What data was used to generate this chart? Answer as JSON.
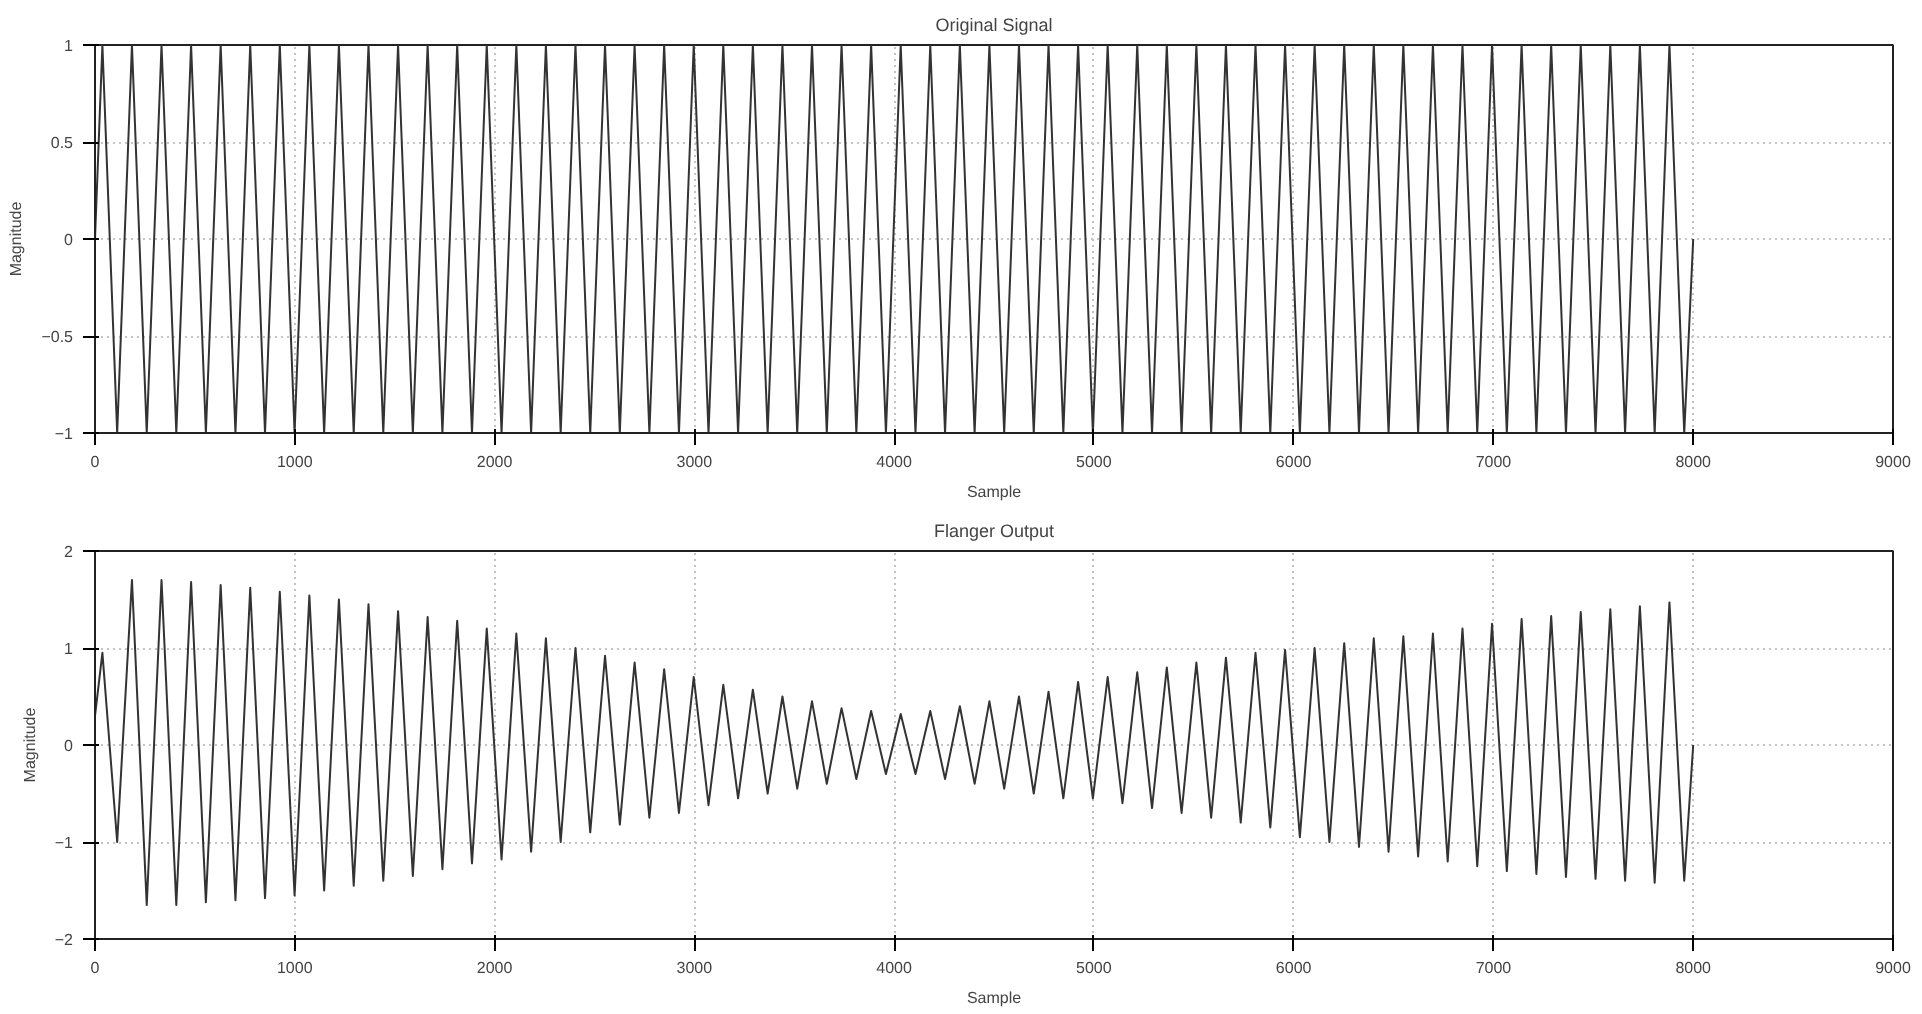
{
  "chart_data": [
    {
      "type": "line",
      "title": "Original Signal",
      "xlabel": "Sample",
      "ylabel": "Magnitude",
      "grid": true,
      "xlim": [
        0,
        9000
      ],
      "xticks": [
        0,
        1000,
        2000,
        3000,
        4000,
        5000,
        6000,
        7000,
        8000,
        9000
      ],
      "ylim": [
        -1,
        1
      ],
      "yticks": [
        -1,
        -0.5,
        0,
        0.5,
        1
      ],
      "x": [
        0,
        37,
        111,
        185,
        259,
        333,
        407,
        481,
        555,
        629,
        703,
        777,
        851,
        925,
        999,
        1073,
        1147,
        1221,
        1295,
        1369,
        1443,
        1517,
        1591,
        1665,
        1739,
        1813,
        1887,
        1961,
        2035,
        2109,
        2183,
        2257,
        2331,
        2405,
        2479,
        2553,
        2627,
        2701,
        2775,
        2849,
        2923,
        2997,
        3071,
        3145,
        3219,
        3293,
        3367,
        3441,
        3515,
        3589,
        3663,
        3737,
        3811,
        3885,
        3959,
        4033,
        4107,
        4181,
        4255,
        4329,
        4403,
        4477,
        4551,
        4625,
        4699,
        4773,
        4847,
        4921,
        4995,
        5069,
        5143,
        5217,
        5291,
        5365,
        5439,
        5513,
        5587,
        5661,
        5735,
        5809,
        5883,
        5957,
        6031,
        6105,
        6179,
        6253,
        6327,
        6401,
        6475,
        6549,
        6623,
        6697,
        6771,
        6845,
        6919,
        6993,
        7067,
        7141,
        7215,
        7289,
        7363,
        7437,
        7511,
        7585,
        7659,
        7733,
        7807,
        7881,
        7955,
        8000
      ],
      "series": [
        {
          "color": "#333333",
          "values": [
            0,
            1,
            -1,
            1,
            -1,
            1,
            -1,
            1,
            -1,
            1,
            -1,
            1,
            -1,
            1,
            -1,
            1,
            -1,
            1,
            -1,
            1,
            -1,
            1,
            -1,
            1,
            -1,
            1,
            -1,
            1,
            -1,
            1,
            -1,
            1,
            -1,
            1,
            -1,
            1,
            -1,
            1,
            -1,
            1,
            -1,
            1,
            -1,
            1,
            -1,
            1,
            -1,
            1,
            -1,
            1,
            -1,
            1,
            -1,
            1,
            -1,
            1,
            -1,
            1,
            -1,
            1,
            -1,
            1,
            -1,
            1,
            -1,
            1,
            -1,
            1,
            -1,
            1,
            -1,
            1,
            -1,
            1,
            -1,
            1,
            -1,
            1,
            -1,
            1,
            -1,
            1,
            -1,
            1,
            -1,
            1,
            -1,
            1,
            -1,
            1,
            -1,
            1,
            -1,
            1,
            -1,
            1,
            -1,
            1,
            -1,
            1,
            -1,
            1,
            -1,
            1,
            -1,
            1,
            -1,
            1,
            -1,
            0
          ]
        }
      ]
    },
    {
      "type": "line",
      "title": "Flanger Output",
      "xlabel": "Sample",
      "ylabel": "Magnitude",
      "grid": true,
      "xlim": [
        0,
        9000
      ],
      "xticks": [
        0,
        1000,
        2000,
        3000,
        4000,
        5000,
        6000,
        7000,
        8000,
        9000
      ],
      "ylim": [
        -2,
        2
      ],
      "yticks": [
        -2,
        -1,
        0,
        1,
        2
      ],
      "x": [
        0,
        37,
        111,
        185,
        259,
        333,
        407,
        481,
        555,
        629,
        703,
        777,
        851,
        925,
        999,
        1073,
        1147,
        1221,
        1295,
        1369,
        1443,
        1517,
        1591,
        1665,
        1739,
        1813,
        1887,
        1961,
        2035,
        2109,
        2183,
        2257,
        2331,
        2405,
        2479,
        2553,
        2627,
        2701,
        2775,
        2849,
        2923,
        2997,
        3071,
        3145,
        3219,
        3293,
        3367,
        3441,
        3515,
        3589,
        3663,
        3737,
        3811,
        3885,
        3959,
        4033,
        4107,
        4181,
        4255,
        4329,
        4403,
        4477,
        4551,
        4625,
        4699,
        4773,
        4847,
        4921,
        4995,
        5069,
        5143,
        5217,
        5291,
        5365,
        5439,
        5513,
        5587,
        5661,
        5735,
        5809,
        5883,
        5957,
        6031,
        6105,
        6179,
        6253,
        6327,
        6401,
        6475,
        6549,
        6623,
        6697,
        6771,
        6845,
        6919,
        6993,
        7067,
        7141,
        7215,
        7289,
        7363,
        7437,
        7511,
        7585,
        7659,
        7733,
        7807,
        7881,
        7955,
        8000
      ],
      "series": [
        {
          "color": "#333333",
          "values": [
            0.3,
            0.95,
            -1.0,
            1.7,
            -1.65,
            1.7,
            -1.65,
            1.68,
            -1.62,
            1.65,
            -1.6,
            1.62,
            -1.58,
            1.58,
            -1.55,
            1.54,
            -1.5,
            1.5,
            -1.45,
            1.45,
            -1.4,
            1.38,
            -1.35,
            1.32,
            -1.28,
            1.28,
            -1.22,
            1.2,
            -1.18,
            1.15,
            -1.1,
            1.1,
            -1.0,
            1.0,
            -0.9,
            0.92,
            -0.82,
            0.85,
            -0.75,
            0.78,
            -0.7,
            0.7,
            -0.62,
            0.62,
            -0.55,
            0.57,
            -0.5,
            0.5,
            -0.45,
            0.45,
            -0.4,
            0.38,
            -0.35,
            0.35,
            -0.3,
            0.32,
            -0.3,
            0.35,
            -0.35,
            0.4,
            -0.4,
            0.45,
            -0.45,
            0.5,
            -0.5,
            0.55,
            -0.55,
            0.65,
            -0.55,
            0.7,
            -0.6,
            0.75,
            -0.65,
            0.8,
            -0.7,
            0.85,
            -0.75,
            0.9,
            -0.8,
            0.95,
            -0.85,
            0.98,
            -0.95,
            1.0,
            -1.0,
            1.05,
            -1.05,
            1.1,
            -1.1,
            1.12,
            -1.15,
            1.15,
            -1.2,
            1.2,
            -1.25,
            1.25,
            -1.3,
            1.3,
            -1.33,
            1.33,
            -1.36,
            1.37,
            -1.38,
            1.4,
            -1.4,
            1.43,
            -1.42,
            1.47,
            -1.4,
            0
          ]
        }
      ]
    }
  ]
}
